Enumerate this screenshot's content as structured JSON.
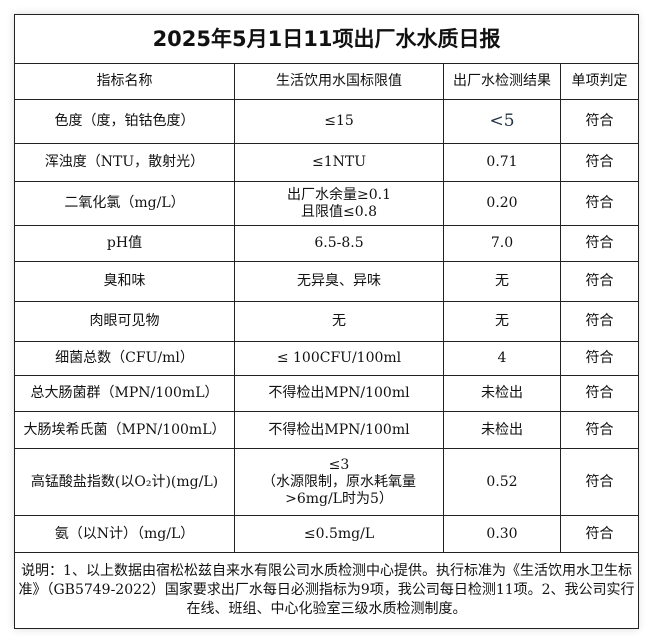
{
  "title": "2025年5月1日11项出厂水水质日报",
  "headers": [
    "指标名称",
    "生活饮用水国标限值",
    "出厂水检测结果",
    "单项判定"
  ],
  "rows": [
    {
      "name": "色度（度，铂钴色度）",
      "limit": "≤15",
      "result": "<5",
      "judge": "符合"
    },
    {
      "name": "浑浊度（NTU，散射光）",
      "limit": "≤1NTU",
      "result": "0.71",
      "judge": "符合"
    },
    {
      "name": "二氧化氯（mg/L）",
      "limit": "出厂水余量≥0.1",
      "limit2": "且限值≤0.8",
      "result": "0.20",
      "judge": "符合"
    },
    {
      "name": "pH值",
      "limit": "6.5-8.5",
      "result": "7.0",
      "judge": "符合"
    },
    {
      "name": "臭和味",
      "limit": "无异臭、异味",
      "result": "无",
      "judge": "符合"
    },
    {
      "name": "肉眼可见物",
      "limit": "无",
      "result": "无",
      "judge": "符合"
    },
    {
      "name": "细菌总数（CFU/ml）",
      "limit": "≤ 100CFU/100ml",
      "result": "4",
      "judge": "符合"
    },
    {
      "name": "总大肠菌群（MPN/100mL）",
      "limit": "不得检出MPN/100ml",
      "result": "未检出",
      "judge": "符合"
    },
    {
      "name": "大肠埃希氏菌（MPN/100mL）",
      "limit": "不得检出MPN/100ml",
      "result": "未检出",
      "judge": "符合"
    },
    {
      "name": "高锰酸盐指数(以O₂计)(mg/L)",
      "limit": "≤3",
      "limit2": "（水源限制，原水耗氧量",
      "limit3": ">6mg/L时为5）",
      "result": "0.52",
      "judge": "符合"
    },
    {
      "name": "氨（以N计）（mg/L）",
      "limit": "≤0.5mg/L",
      "result": "0.30",
      "judge": "符合"
    }
  ],
  "notes": "说明：1、以上数据由宿松松兹自来水有限公司水质检测中心提供。执行标准为《生活饮用水卫生标准》（GB5749-2022）国家要求出厂水每日必测指标为9项，我公司每日检测11项。2、我公司实行在线、班组、中心化验室三级水质检测制度。"
}
